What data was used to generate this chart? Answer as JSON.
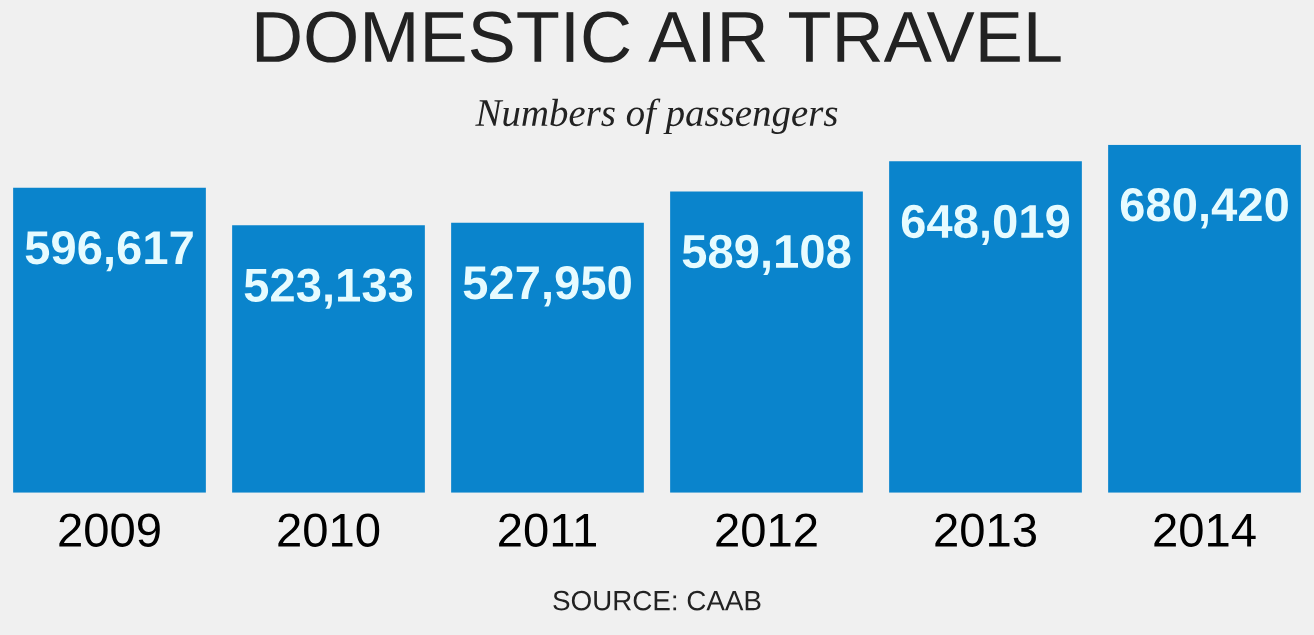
{
  "chart_data": {
    "type": "bar",
    "title": "DOMESTIC AIR TRAVEL",
    "subtitle": "Numbers of passengers",
    "categories": [
      "2009",
      "2010",
      "2011",
      "2012",
      "2013",
      "2014"
    ],
    "values": [
      596617,
      523133,
      527950,
      589108,
      648019,
      680420
    ],
    "value_labels": [
      "596,617",
      "523,133",
      "527,950",
      "589,108",
      "648,019",
      "680,420"
    ],
    "color": "#0a84cc",
    "annotations": [
      "SOURCE: CAAB"
    ]
  }
}
